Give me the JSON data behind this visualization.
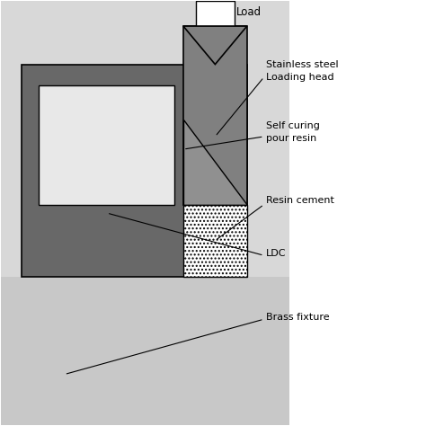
{
  "bg_outer_color": "#c8c8c8",
  "bg_inner_color": "#d8d8d8",
  "dark_block_color": "#686868",
  "ldc_color": "#e8e8e8",
  "loading_head_color": "#808080",
  "resin_wedge_color": "#909090",
  "white_color": "#ffffff",
  "border_color": "#000000",
  "labels": {
    "load": "Load",
    "ss_loading": "Stainless steel\nLoading head",
    "self_curing": "Self curing\npour resin",
    "resin_cement": "Resin cement",
    "ldc": "LDC",
    "brass_fixture": "Brass fixture"
  },
  "layout": {
    "fig_w": 4.74,
    "fig_h": 4.74,
    "dpi": 100,
    "xlim": [
      0,
      10
    ],
    "ylim": [
      0,
      10
    ]
  }
}
